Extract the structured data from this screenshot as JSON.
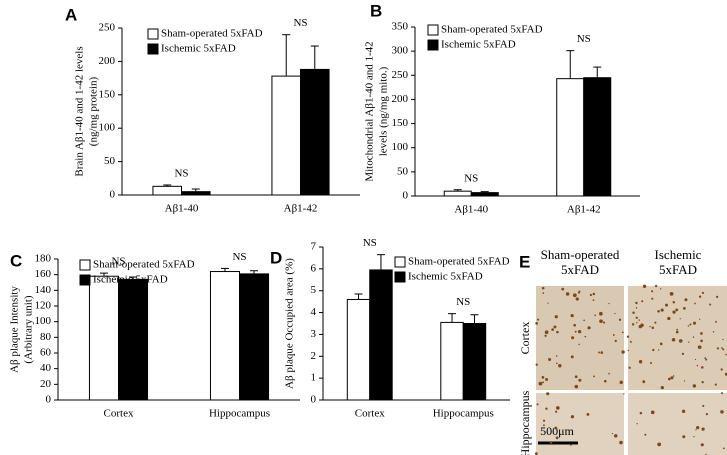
{
  "chart_data": [
    {
      "type": "bar",
      "panel": "A",
      "ylabel": [
        "Brain Aβ1-40 and 1-42 levels",
        "(ng/mg protein)"
      ],
      "categories": [
        "Aβ1-40",
        "Aβ1-42"
      ],
      "series": [
        {
          "name": "Sham-operated 5xFAD",
          "color": "#ffffff",
          "values": [
            13,
            178
          ],
          "errors": [
            2,
            62
          ]
        },
        {
          "name": "Ischemic 5xFAD",
          "color": "#000000",
          "values": [
            5,
            188
          ],
          "errors": [
            4,
            35
          ]
        }
      ],
      "annotations": [
        "NS",
        "NS"
      ],
      "ylim": [
        0,
        250
      ],
      "yticks": [
        0,
        50,
        100,
        150,
        200,
        250
      ]
    },
    {
      "type": "bar",
      "panel": "B",
      "ylabel": [
        "Mitochondrial Aβ1-40 and 1-42",
        "levels (ng/mg mito.)"
      ],
      "categories": [
        "Aβ1-40",
        "Aβ1-42"
      ],
      "series": [
        {
          "name": "Sham-operated 5xFAD",
          "color": "#ffffff",
          "values": [
            10,
            243
          ],
          "errors": [
            3,
            58
          ]
        },
        {
          "name": "Ischemic 5xFAD",
          "color": "#000000",
          "values": [
            7,
            245
          ],
          "errors": [
            2,
            22
          ]
        }
      ],
      "annotations": [
        "NS",
        "NS"
      ],
      "ylim": [
        0,
        350
      ],
      "yticks": [
        0,
        50,
        100,
        150,
        200,
        250,
        300,
        350
      ]
    },
    {
      "type": "bar",
      "panel": "C",
      "ylabel": [
        "Aβ plaque Intensity",
        "(Arbitrary unit)"
      ],
      "categories": [
        "Cortex",
        "Hippocampus"
      ],
      "series": [
        {
          "name": "Sham-operated 5xFAD",
          "color": "#ffffff",
          "values": [
            158,
            164
          ],
          "errors": [
            4,
            4
          ]
        },
        {
          "name": "Ischemic 5xFAD",
          "color": "#000000",
          "values": [
            154,
            161
          ],
          "errors": [
            3,
            4
          ]
        }
      ],
      "annotations": [
        "NS",
        "NS"
      ],
      "ylim": [
        0,
        180
      ],
      "yticks": [
        0,
        20,
        40,
        60,
        80,
        100,
        120,
        140,
        160,
        180
      ]
    },
    {
      "type": "bar",
      "panel": "D",
      "ylabel": [
        "Aβ plaque Occupied area (%)"
      ],
      "categories": [
        "Cortex",
        "Hippocampus"
      ],
      "series": [
        {
          "name": "Sham-operated 5xFAD",
          "color": "#ffffff",
          "values": [
            4.6,
            3.55
          ],
          "errors": [
            0.25,
            0.4
          ]
        },
        {
          "name": "Ischemic 5xFAD",
          "color": "#000000",
          "values": [
            5.95,
            3.5
          ],
          "errors": [
            0.7,
            0.4
          ]
        }
      ],
      "annotations": [
        "NS",
        "NS"
      ],
      "ylim": [
        0,
        7
      ],
      "yticks": [
        0,
        1,
        2,
        3,
        4,
        5,
        6,
        7
      ]
    }
  ],
  "panel_e": {
    "label": "E",
    "columns": [
      [
        "Sham-operated",
        "5xFAD"
      ],
      [
        "Ischemic",
        "5xFAD"
      ]
    ],
    "rows": [
      "Cortex",
      "Hippocampus"
    ],
    "scale_bar": "500μm"
  }
}
